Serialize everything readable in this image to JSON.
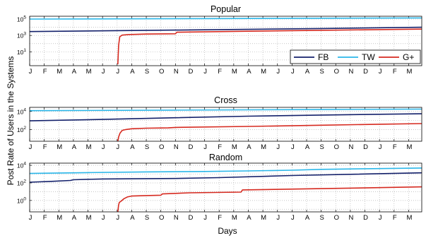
{
  "chart_data": {
    "type": "line",
    "ylabel": "Post Rate of Users in the Systems",
    "xlabel": "Days",
    "month_ticks": [
      "J",
      "F",
      "M",
      "A",
      "M",
      "J",
      "J",
      "A",
      "S",
      "O",
      "N",
      "D",
      "J",
      "F",
      "M",
      "A",
      "M",
      "J",
      "J",
      "A",
      "S",
      "O",
      "N",
      "D",
      "J",
      "F",
      "M"
    ],
    "x_unit": "months since first January tick",
    "x_range": [
      0,
      26.9
    ],
    "legend": {
      "placement": "inside-bottom-right",
      "panel": 0
    },
    "colors": {
      "FB": "#14216b",
      "TW": "#2bb7e9",
      "G+": "#d62a20"
    },
    "panels": [
      {
        "title": "Popular",
        "yscale": "log",
        "ylim_exp": [
          -0.7,
          5.35
        ],
        "yticks": [
          {
            "exp": 1,
            "base": "10",
            "sup": "1"
          },
          {
            "exp": 3,
            "base": "10",
            "sup": "3"
          },
          {
            "exp": 5,
            "base": "10",
            "sup": "5"
          }
        ],
        "series": [
          {
            "name": "FB",
            "x": [
              0,
              10,
              20,
              26.9
            ],
            "y": [
              3000,
              4500,
              7000,
              10000
            ]
          },
          {
            "name": "TW",
            "x": [
              0,
              13,
              26.9
            ],
            "y": [
              100000,
              115000,
              140000
            ]
          },
          {
            "name": "G+",
            "x": [
              6.05,
              6.1,
              6.18,
              6.35,
              6.8,
              8,
              10,
              10.1,
              15,
              20,
              26.9
            ],
            "y": [
              0.3,
              60,
              700,
              1100,
              1300,
              1500,
              1600,
              2500,
              3300,
              4300,
              6000
            ]
          }
        ]
      },
      {
        "title": "Cross",
        "yscale": "log",
        "ylim_exp": [
          0.7,
          4.45
        ],
        "yticks": [
          {
            "exp": 2,
            "base": "10",
            "sup": "2"
          },
          {
            "exp": 4,
            "base": "10",
            "sup": "4"
          }
        ],
        "series": [
          {
            "name": "FB",
            "x": [
              0,
              5,
              10,
              15,
              20,
              26.9
            ],
            "y": [
              900,
              1300,
              2000,
              3000,
              4000,
              5500
            ]
          },
          {
            "name": "TW",
            "x": [
              0,
              10,
              20,
              26.9
            ],
            "y": [
              12000,
              14000,
              16000,
              18000
            ]
          },
          {
            "name": "G+",
            "x": [
              6.05,
              6.1,
              6.2,
              6.35,
              6.6,
              7,
              8,
              9.5,
              10,
              15,
              20,
              24,
              26.9
            ],
            "y": [
              5,
              15,
              40,
              80,
              100,
              120,
              140,
              150,
              170,
              220,
              300,
              380,
              450
            ]
          }
        ]
      },
      {
        "title": "Random",
        "yscale": "log",
        "ylim_exp": [
          -1.3,
          4.25
        ],
        "yticks": [
          {
            "exp": 0,
            "base": "10",
            "sup": "0"
          },
          {
            "exp": 2,
            "base": "10",
            "sup": "2"
          },
          {
            "exp": 4,
            "base": "10",
            "sup": "4"
          }
        ],
        "series": [
          {
            "name": "FB",
            "x": [
              0,
              1.5,
              2.8,
              3,
              5,
              10,
              13,
              18,
              26.9
            ],
            "y": [
              120,
              150,
              190,
              230,
              280,
              320,
              400,
              700,
              1400
            ]
          },
          {
            "name": "TW",
            "x": [
              0,
              4,
              8,
              12,
              15,
              18,
              20,
              26.9
            ],
            "y": [
              1200,
              1500,
              1800,
              2000,
              2300,
              2800,
              3500,
              5000
            ]
          },
          {
            "name": "G+",
            "x": [
              6.05,
              6.1,
              6.15,
              6.3,
              6.45,
              6.7,
              7,
              8,
              9,
              9.1,
              11,
              14.5,
              14.6,
              20,
              26.9
            ],
            "y": [
              0.05,
              0.3,
              0.6,
              0.9,
              1.5,
              2.5,
              3.2,
              3.6,
              4,
              5.5,
              7.5,
              9,
              16,
              22,
              35
            ]
          }
        ]
      }
    ]
  }
}
